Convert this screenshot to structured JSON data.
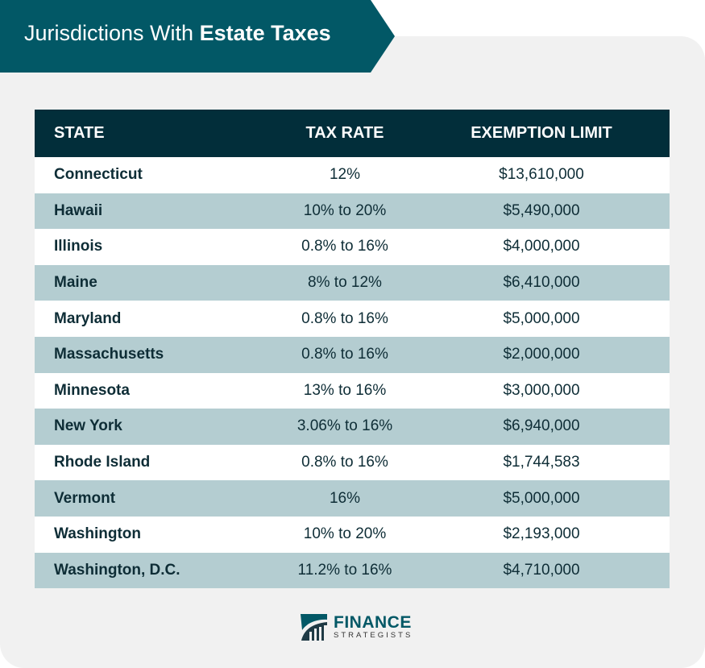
{
  "title": {
    "light": "Jurisdictions With ",
    "bold": "Estate Taxes"
  },
  "table": {
    "headers": [
      "STATE",
      "TAX RATE",
      "EXEMPTION LIMIT"
    ],
    "rows": [
      [
        "Connecticut",
        "12%",
        "$13,610,000"
      ],
      [
        "Hawaii",
        "10% to 20%",
        "$5,490,000"
      ],
      [
        "Illinois",
        "0.8% to 16%",
        "$4,000,000"
      ],
      [
        "Maine",
        "8% to 12%",
        "$6,410,000"
      ],
      [
        "Maryland",
        "0.8% to 16%",
        "$5,000,000"
      ],
      [
        "Massachusetts",
        "0.8% to 16%",
        "$2,000,000"
      ],
      [
        "Minnesota",
        "13% to 16%",
        "$3,000,000"
      ],
      [
        "New York",
        "3.06% to 16%",
        "$6,940,000"
      ],
      [
        "Rhode Island",
        "0.8% to 16%",
        "$1,744,583"
      ],
      [
        "Vermont",
        "16%",
        "$5,000,000"
      ],
      [
        "Washington",
        "10% to 20%",
        "$2,193,000"
      ],
      [
        "Washington, D.C.",
        "11.2% to 16%",
        "$4,710,000"
      ]
    ]
  },
  "logo": {
    "name": "FINANCE",
    "sub": "STRATEGISTS"
  },
  "colors": {
    "banner": "#025866",
    "header": "#022e3a",
    "stripe": "#b4cdd1"
  }
}
